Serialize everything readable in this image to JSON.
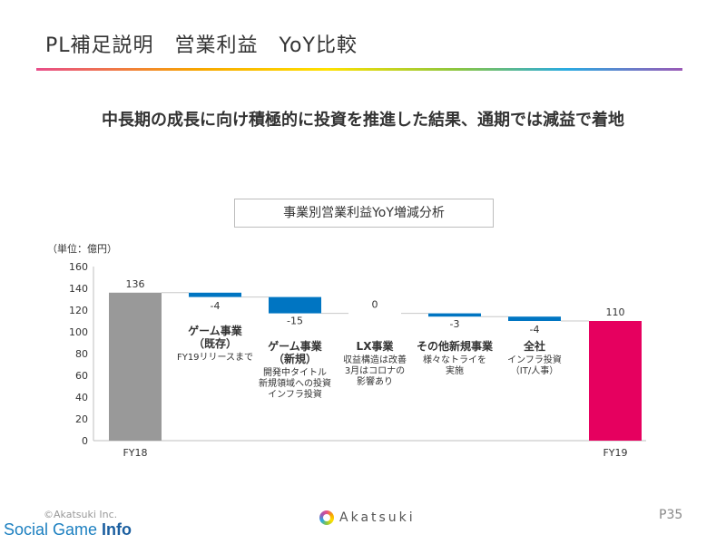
{
  "slide": {
    "title": "PL補足説明　営業利益　YoY比較",
    "headline": "中長期の成長に向け積極的に投資を推進した結果、通期では減益で着地",
    "footer_copyright": "©Akatsuki Inc.",
    "logo_text": "Akatsuki",
    "page_number": "P35",
    "watermark_a": "Social Game ",
    "watermark_b": "Info"
  },
  "colors": {
    "base_bar": "#999999",
    "negative": "#0075c2",
    "final_bar": "#e6005f",
    "connector": "#c8c8c8"
  },
  "chart_data": {
    "type": "waterfall",
    "title": "事業別営業利益YoY増減分析",
    "unit_label": "（単位：億円）",
    "ylim": [
      0,
      160
    ],
    "yticks": [
      0,
      20,
      40,
      60,
      80,
      100,
      120,
      140,
      160
    ],
    "grid": false,
    "steps": [
      {
        "kind": "total",
        "value": 136,
        "value_label": "136",
        "axis_label": "FY18",
        "name": "",
        "notes": []
      },
      {
        "kind": "delta",
        "value": -4,
        "value_label": "-4",
        "axis_label": "",
        "name": "ゲーム事業\n（既存）",
        "notes": [
          "FY19リリースまで"
        ]
      },
      {
        "kind": "delta",
        "value": -15,
        "value_label": "-15",
        "axis_label": "",
        "name": "ゲーム事業\n（新規）",
        "notes": [
          "開発中タイトル",
          "新規領域への投資",
          "インフラ投資"
        ]
      },
      {
        "kind": "delta",
        "value": 0,
        "value_label": "0",
        "axis_label": "",
        "name": "LX事業",
        "notes": [
          "収益構造は改善",
          "3月はコロナの",
          "影響あり"
        ]
      },
      {
        "kind": "delta",
        "value": -3,
        "value_label": "-3",
        "axis_label": "",
        "name": "その他新規事業",
        "notes": [
          "様々なトライを",
          "実施"
        ]
      },
      {
        "kind": "delta",
        "value": -4,
        "value_label": "-4",
        "axis_label": "",
        "name": "全社",
        "notes": [
          "インフラ投資",
          "（IT/人事）"
        ]
      },
      {
        "kind": "total",
        "value": 110,
        "value_label": "110",
        "axis_label": "FY19",
        "name": "",
        "notes": []
      }
    ]
  }
}
